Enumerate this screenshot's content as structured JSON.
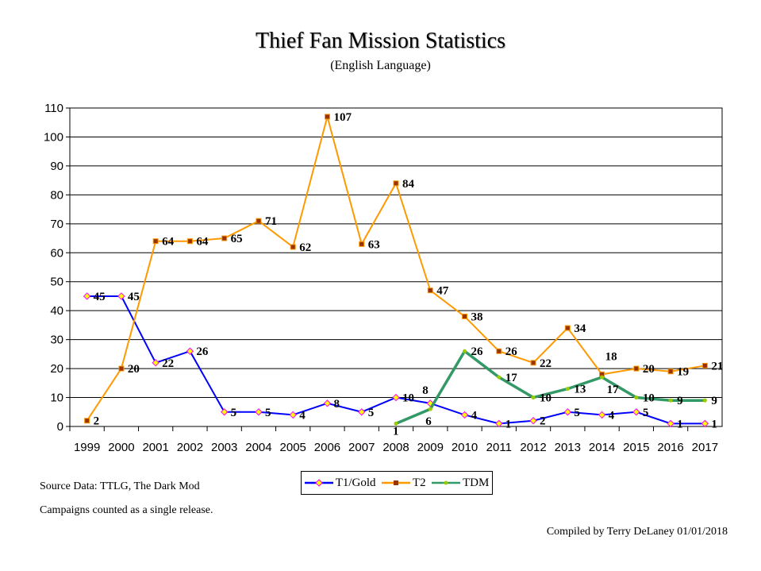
{
  "chart_data": {
    "type": "line",
    "title": "Thief Fan Mission Statistics",
    "subtitle": "(English Language)",
    "xlabel": "",
    "ylabel": "",
    "ylim": [
      0,
      110
    ],
    "yticks": [
      0,
      10,
      20,
      30,
      40,
      50,
      60,
      70,
      80,
      90,
      100,
      110
    ],
    "grid": true,
    "legend_position": "bottom",
    "categories": [
      "1999",
      "2000",
      "2001",
      "2002",
      "2003",
      "2004",
      "2005",
      "2006",
      "2007",
      "2008",
      "2009",
      "2010",
      "2011",
      "2012",
      "2013",
      "2014",
      "2015",
      "2016",
      "2017"
    ],
    "series": [
      {
        "name": "T1/Gold",
        "color": "#0000ff",
        "values": [
          45,
          45,
          22,
          26,
          5,
          5,
          4,
          8,
          5,
          10,
          8,
          4,
          1,
          2,
          5,
          4,
          5,
          1,
          1
        ]
      },
      {
        "name": "T2",
        "color": "#ff9900",
        "values": [
          2,
          20,
          64,
          64,
          65,
          71,
          62,
          107,
          63,
          84,
          47,
          38,
          26,
          22,
          34,
          18,
          20,
          19,
          21
        ]
      },
      {
        "name": "TDM",
        "color": "#339966",
        "values": [
          null,
          null,
          null,
          null,
          null,
          null,
          null,
          null,
          null,
          1,
          6,
          26,
          17,
          10,
          13,
          17,
          10,
          9,
          9
        ]
      }
    ]
  },
  "notes": {
    "source": "Source Data:  TTLG, The Dark Mod",
    "campaigns": "Campaigns counted as a single release.",
    "credit": "Compiled by Terry DeLaney 01/01/2018"
  }
}
